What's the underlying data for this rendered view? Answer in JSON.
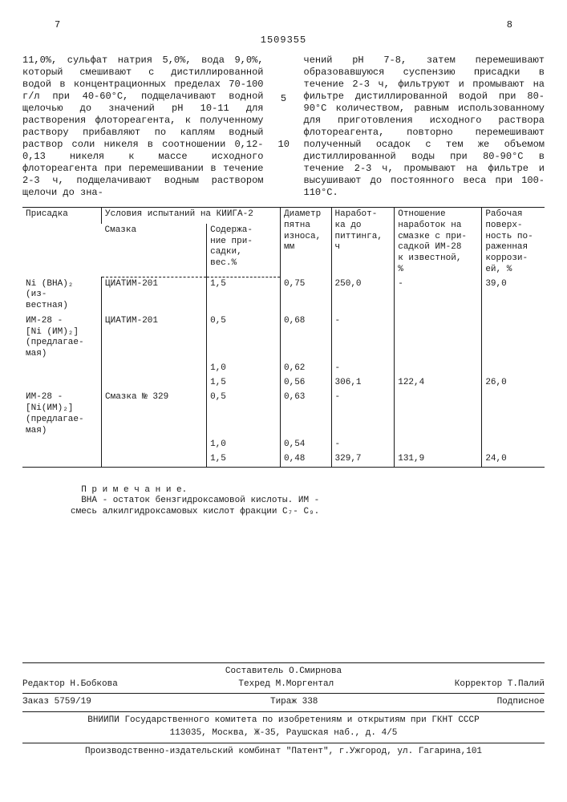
{
  "header": {
    "page_left": "7",
    "page_right": "8",
    "doc_number": "1509355"
  },
  "margin_numbers": [
    "5",
    "10"
  ],
  "body": {
    "col_left": "11,0%, сульфат натрия 5,0%, вода 9,0%, который смешивают с дистиллированной водой в концентрационных пределах 70-100 г/л при 40-60°С, подщелачивают водной щелочью до значений pH 10-11 для растворения флотореагента, к полученному раствору прибавляют по каплям водный раствор соли никеля в соотношении 0,12-0,13 никеля к массе исходного флотореагента при перемешивании в течение 2-3 ч, подщелачивают водным раствором щелочи до зна-",
    "col_right": "чений pH 7-8, затем перемешивают образовавшуюся суспензию присадки в течение 2-3 ч, фильтруют и промывают на фильтре дистиллированной водой при 80-90°С количеством, равным использованному для приготовления исходного раствора флотореагента, повторно перемешивают полученный осадок с тем же объемом дистиллированной воды при 80-90°С в течение 2-3 ч, промывают на фильтре и высушивают до постоянного веса при 100-110°С."
  },
  "table": {
    "headers": {
      "h1": "Присадка",
      "h2": "Условия испытаний на КИИГА-2",
      "h2a": "Смазка",
      "h2b": "Содержа-\nние при-\nсадки,\nвес.%",
      "h3": "Диаметр\nпятна\nизноса,\nмм",
      "h4": "Наработ-\nка до\nпиттинга,\nч",
      "h5": "Отношение\nнаработок на\nсмазке с при-\nсадкой ИМ-28\nк известной,\n%",
      "h6": "Рабочая\nповерх-\nность по-\nраженная\nкоррози-\nей, %"
    },
    "rows": [
      {
        "a": "Ni (BHA)₂ (из-\nвестная)",
        "b": "ЦИАТИМ-201",
        "c": "1,5",
        "d": "0,75",
        "e": "250,0",
        "f": "-",
        "g": "39,0"
      },
      {
        "a": "ИМ-28 -\n[Ni (ИМ)₂]\n(предлагае-\nмая)",
        "b": "ЦИАТИМ-201",
        "c": "0,5",
        "d": "0,68",
        "e": "-",
        "f": "",
        "g": ""
      },
      {
        "a": "",
        "b": "",
        "c": "1,0",
        "d": "0,62",
        "e": "-",
        "f": "",
        "g": ""
      },
      {
        "a": "",
        "b": "",
        "c": "1,5",
        "d": "0,56",
        "e": "306,1",
        "f": "122,4",
        "g": "26,0"
      },
      {
        "a": "ИМ-28 -\n[Ni(ИМ)₂]\n(предлагае-\nмая)",
        "b": "Смазка № 329",
        "c": "0,5",
        "d": "0,63",
        "e": "-",
        "f": "",
        "g": ""
      },
      {
        "a": "",
        "b": "",
        "c": "1,0",
        "d": "0,54",
        "e": "-",
        "f": "",
        "g": ""
      },
      {
        "a": "",
        "b": "",
        "c": "1,5",
        "d": "0,48",
        "e": "329,7",
        "f": "131,9",
        "g": "24,0"
      }
    ],
    "note_label": "П р и м е ч а н и е.",
    "note_text": "ВНА - остаток бензгидроксамовой кислоты. ИМ -\nсмесь алкилгидроксамовых кислот фракции C₇- C₉."
  },
  "footer": {
    "compiler": "Составитель О.Смирнова",
    "editor": "Редактор Н.Бобкова",
    "techred": "Техред М.Моргентал",
    "corrector": "Корректор Т.Палий",
    "order": "Заказ 5759/19",
    "tirazh": "Тираж 338",
    "subscription": "Подписное",
    "org1": "ВНИИПИ Государственного комитета по изобретениям и открытиям при ГКНТ СССР",
    "addr1": "113035, Москва, Ж-35, Раушская наб., д. 4/5",
    "org2": "Производственно-издательский комбинат \"Патент\", г.Ужгород, ул. Гагарина,101"
  }
}
